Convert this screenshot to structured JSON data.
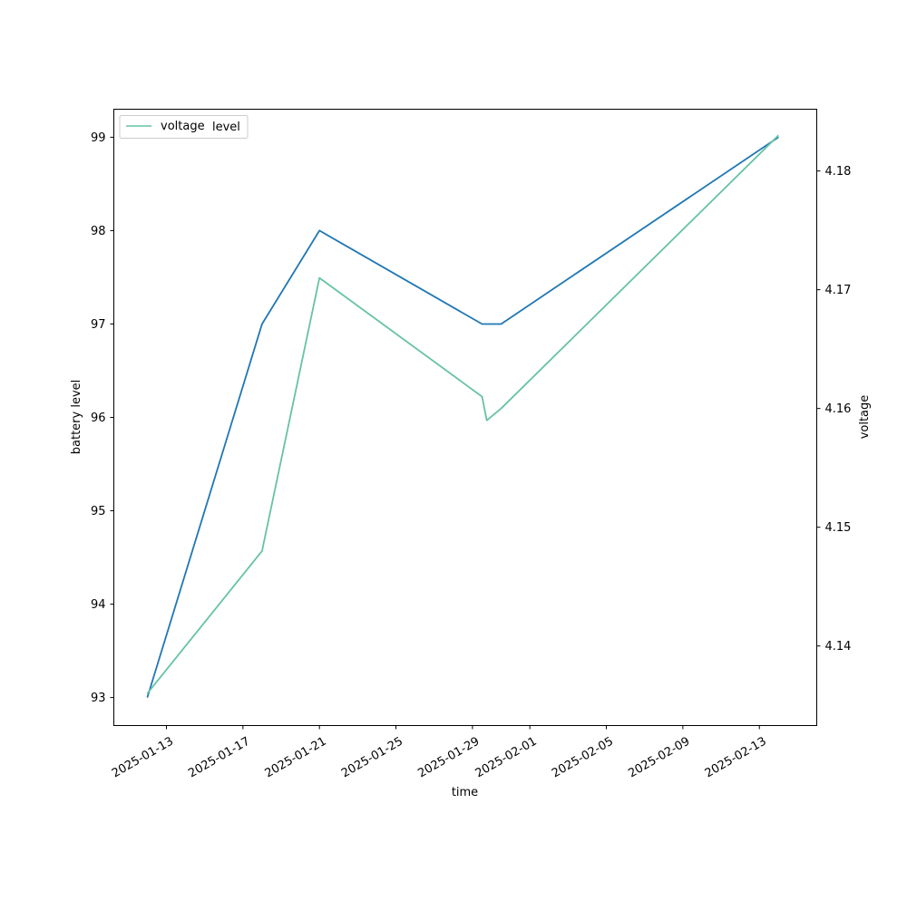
{
  "chart_data": {
    "type": "line",
    "xlabel": "time",
    "ylabel_left": "battery level",
    "ylabel_right": "voltage",
    "x_type": "date",
    "xlim": [
      "2025-01-10T06:00",
      "2025-02-16T00:00"
    ],
    "ylim_left": [
      92.7,
      99.3
    ],
    "ylim_right": [
      4.1333,
      4.1852
    ],
    "x_ticks": [
      "2025-01-13",
      "2025-01-17",
      "2025-01-21",
      "2025-01-25",
      "2025-01-29",
      "2025-02-01",
      "2025-02-05",
      "2025-02-09",
      "2025-02-13"
    ],
    "y_ticks_left": [
      93,
      94,
      95,
      96,
      97,
      98,
      99
    ],
    "y_ticks_right": [
      4.14,
      4.15,
      4.16,
      4.17,
      4.18
    ],
    "y_ticks_right_labels": [
      "4.14",
      "4.15",
      "4.16",
      "4.17",
      "4.18"
    ],
    "legend_overlap_text": "level",
    "series": [
      {
        "name": "battery_level",
        "axis": "left",
        "color": "#1f77b4",
        "x": [
          "2025-01-12",
          "2025-01-18",
          "2025-01-21",
          "2025-01-29T12:00",
          "2025-01-30T12:00",
          "2025-02-14"
        ],
        "y": [
          93,
          97,
          98,
          97,
          97,
          99
        ]
      },
      {
        "name": "voltage",
        "axis": "right",
        "color": "#66c2a5",
        "x": [
          "2025-01-12",
          "2025-01-18",
          "2025-01-21",
          "2025-01-29T12:00",
          "2025-01-29T18:00",
          "2025-01-30T12:00",
          "2025-02-14"
        ],
        "y": [
          4.136,
          4.148,
          4.171,
          4.161,
          4.159,
          4.16,
          4.183
        ]
      }
    ],
    "legend": {
      "placement": "upper-left",
      "entries": [
        "voltage"
      ]
    },
    "grid": false
  }
}
